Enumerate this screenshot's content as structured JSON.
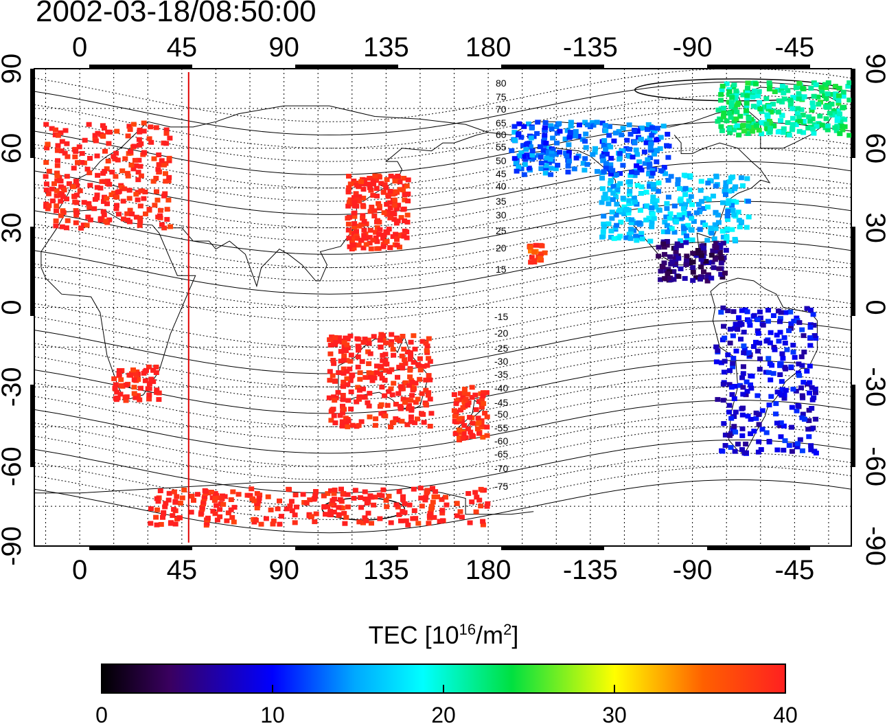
{
  "title": "2002-03-18/08:50:00",
  "x_tick_labels": [
    "0",
    "45",
    "90",
    "135",
    "180",
    "-135",
    "-90",
    "-45"
  ],
  "y_tick_labels": [
    "90",
    "60",
    "30",
    "0",
    "-30",
    "-60",
    "-90"
  ],
  "contour_labels_north": [
    "80",
    "75",
    "70",
    "65",
    "60",
    "55",
    "50",
    "45",
    "40",
    "35",
    "30",
    "25",
    "20",
    "15"
  ],
  "contour_labels_south": [
    "-15",
    "-20",
    "-25",
    "-30",
    "-35",
    "-40",
    "-45",
    "-50",
    "-55",
    "-60",
    "-65",
    "-70",
    "-75"
  ],
  "colorbar": {
    "label_main": "TEC  [10",
    "label_exp": "16",
    "label_mid": "/m",
    "label_exp2": "2",
    "label_end": "]",
    "ticks": [
      "0",
      "10",
      "20",
      "30",
      "40"
    ]
  },
  "colors": {
    "high_tec": "#ff1e1e",
    "marker_line": "#e00000"
  },
  "chart_data": {
    "type": "map",
    "projection": "equirectangular",
    "xlim": [
      -20,
      340
    ],
    "ylim": [
      -90,
      90
    ],
    "time_marker_lon": 48,
    "colorbar_range": [
      0,
      40
    ],
    "clusters": [
      {
        "region": "Europe",
        "lon": [
          -15,
          40
        ],
        "lat": [
          30,
          70
        ],
        "tec": 40
      },
      {
        "region": "East Asia / Japan",
        "lon": [
          118,
          145
        ],
        "lat": [
          22,
          50
        ],
        "tec": 40
      },
      {
        "region": "Southern Africa",
        "lon": [
          15,
          35
        ],
        "lat": [
          -35,
          -22
        ],
        "tec": 40
      },
      {
        "region": "Australia",
        "lon": [
          110,
          155
        ],
        "lat": [
          -45,
          -10
        ],
        "tec": 40
      },
      {
        "region": "New Zealand",
        "lon": [
          165,
          180
        ],
        "lat": [
          -50,
          -30
        ],
        "tec": 39
      },
      {
        "region": "Antarctic rim",
        "lon": [
          30,
          180
        ],
        "lat": [
          -82,
          -68
        ],
        "tec": 40
      },
      {
        "region": "Hawaii",
        "lon": [
          198,
          205
        ],
        "lat": [
          17,
          24
        ],
        "tec": 37
      },
      {
        "region": "North America",
        "lon": [
          -130,
          -65
        ],
        "lat": [
          25,
          50
        ],
        "tec": 16
      },
      {
        "region": "Alaska / Canada",
        "lon": [
          -170,
          -100
        ],
        "lat": [
          50,
          70
        ],
        "tec": 13
      },
      {
        "region": "Greenland / Arctic",
        "lon": [
          -80,
          -20
        ],
        "lat": [
          65,
          85
        ],
        "tec": 22
      },
      {
        "region": "Central America",
        "lon": [
          -105,
          -75
        ],
        "lat": [
          10,
          25
        ],
        "tec": 5
      },
      {
        "region": "South America",
        "lon": [
          -80,
          -35
        ],
        "lat": [
          -55,
          0
        ],
        "tec": 9
      }
    ]
  }
}
